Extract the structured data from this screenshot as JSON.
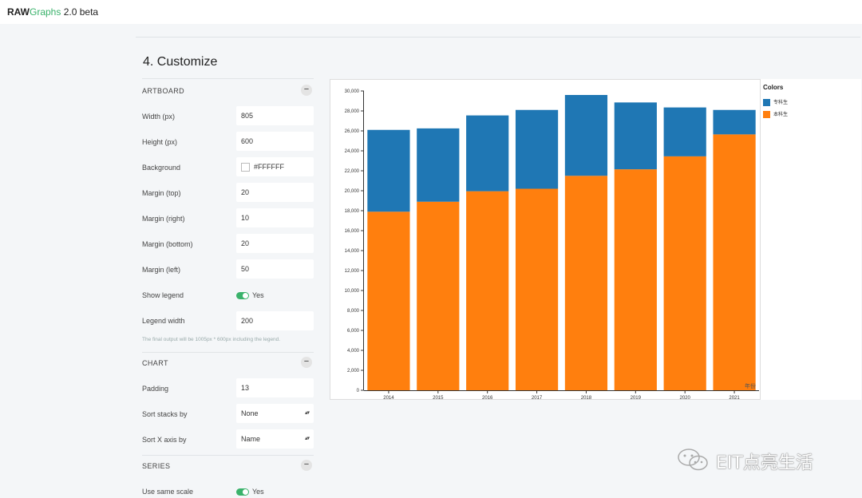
{
  "app": {
    "brand_raw": "RAW",
    "brand_graphs": "Graphs",
    "version": "2.0 beta"
  },
  "section": {
    "title": "4. Customize"
  },
  "artboard": {
    "heading": "ARTBOARD",
    "width_label": "Width (px)",
    "width_value": "805",
    "height_label": "Height (px)",
    "height_value": "600",
    "background_label": "Background",
    "background_value": "#FFFFFF",
    "margin_top_label": "Margin (top)",
    "margin_top_value": "20",
    "margin_right_label": "Margin (right)",
    "margin_right_value": "10",
    "margin_bottom_label": "Margin (bottom)",
    "margin_bottom_value": "20",
    "margin_left_label": "Margin (left)",
    "margin_left_value": "50",
    "show_legend_label": "Show legend",
    "show_legend_value": "Yes",
    "legend_width_label": "Legend width",
    "legend_width_value": "200",
    "note": "The final output will be 1005px * 600px including the legend."
  },
  "chart_panel": {
    "heading": "CHART",
    "padding_label": "Padding",
    "padding_value": "13",
    "sort_stacks_label": "Sort stacks by",
    "sort_stacks_value": "None",
    "sort_x_label": "Sort X axis by",
    "sort_x_value": "Name"
  },
  "series_panel": {
    "heading": "SERIES",
    "same_scale_label": "Use same scale",
    "same_scale_value": "Yes"
  },
  "collapse_symbol": "−",
  "legend": {
    "title": "Colors",
    "items": [
      {
        "label": "专科生",
        "color": "#1f77b4"
      },
      {
        "label": "本科生",
        "color": "#ff7f0e"
      }
    ]
  },
  "watermark": "EIT点亮生活",
  "chart_data": {
    "type": "bar",
    "stacked": true,
    "categories": [
      "2014",
      "2015",
      "2016",
      "2017",
      "2018",
      "2019",
      "2020",
      "2021"
    ],
    "series": [
      {
        "name": "本科生",
        "color": "#ff7f0e",
        "values": [
          17900,
          18900,
          19950,
          20200,
          21500,
          22150,
          23450,
          25650
        ]
      },
      {
        "name": "专科生",
        "color": "#1f77b4",
        "values": [
          8200,
          7350,
          7600,
          7900,
          8100,
          6700,
          4900,
          2450
        ]
      }
    ],
    "ylim": [
      0,
      30000
    ],
    "yticks": [
      0,
      2000,
      4000,
      6000,
      8000,
      10000,
      12000,
      14000,
      16000,
      18000,
      20000,
      22000,
      24000,
      26000,
      28000,
      30000
    ],
    "ytick_labels": [
      "0",
      "2,000",
      "4,000",
      "6,000",
      "8,000",
      "10,000",
      "12,000",
      "14,000",
      "16,000",
      "18,000",
      "20,000",
      "22,000",
      "24,000",
      "26,000",
      "28,000",
      "30,000"
    ],
    "corner_label": "年份",
    "xlabel": "",
    "ylabel": "",
    "title": ""
  }
}
